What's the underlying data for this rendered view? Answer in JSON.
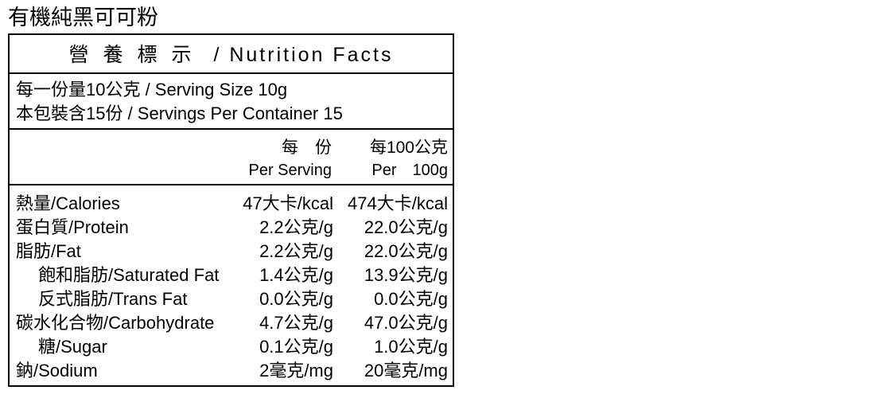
{
  "product_title": "有機純黑可可粉",
  "label": {
    "header_cjk": "營養標示",
    "header_sep": " / ",
    "header_en": "Nutrition Facts",
    "serving_size": "每一份量10公克 / Serving Size 10g",
    "servings_per_container": "本包裝含15份 / Servings Per Container 15",
    "col_per_serving_cjk": "每　份",
    "col_per_serving_en": "Per Serving",
    "col_per_100g_cjk": "每100公克",
    "col_per_100g_en": "Per　100g",
    "rows": [
      {
        "name": "熱量/Calories",
        "per_serving": "47大卡/kcal",
        "per_100g": "474大卡/kcal",
        "indent": false
      },
      {
        "name": "蛋白質/Protein",
        "per_serving": "2.2公克/g",
        "per_100g": "22.0公克/g",
        "indent": false
      },
      {
        "name": "脂肪/Fat",
        "per_serving": "2.2公克/g",
        "per_100g": "22.0公克/g",
        "indent": false
      },
      {
        "name": "飽和脂肪/Saturated Fat",
        "per_serving": "1.4公克/g",
        "per_100g": "13.9公克/g",
        "indent": true
      },
      {
        "name": "反式脂肪/Trans Fat",
        "per_serving": "0.0公克/g",
        "per_100g": "0.0公克/g",
        "indent": true
      },
      {
        "name": "碳水化合物/Carbohydrate",
        "per_serving": "4.7公克/g",
        "per_100g": "47.0公克/g",
        "indent": false
      },
      {
        "name": "糖/Sugar",
        "per_serving": "0.1公克/g",
        "per_100g": "1.0公克/g",
        "indent": true
      },
      {
        "name": "鈉/Sodium",
        "per_serving": "2毫克/mg",
        "per_100g": "20毫克/mg",
        "indent": false
      }
    ]
  }
}
